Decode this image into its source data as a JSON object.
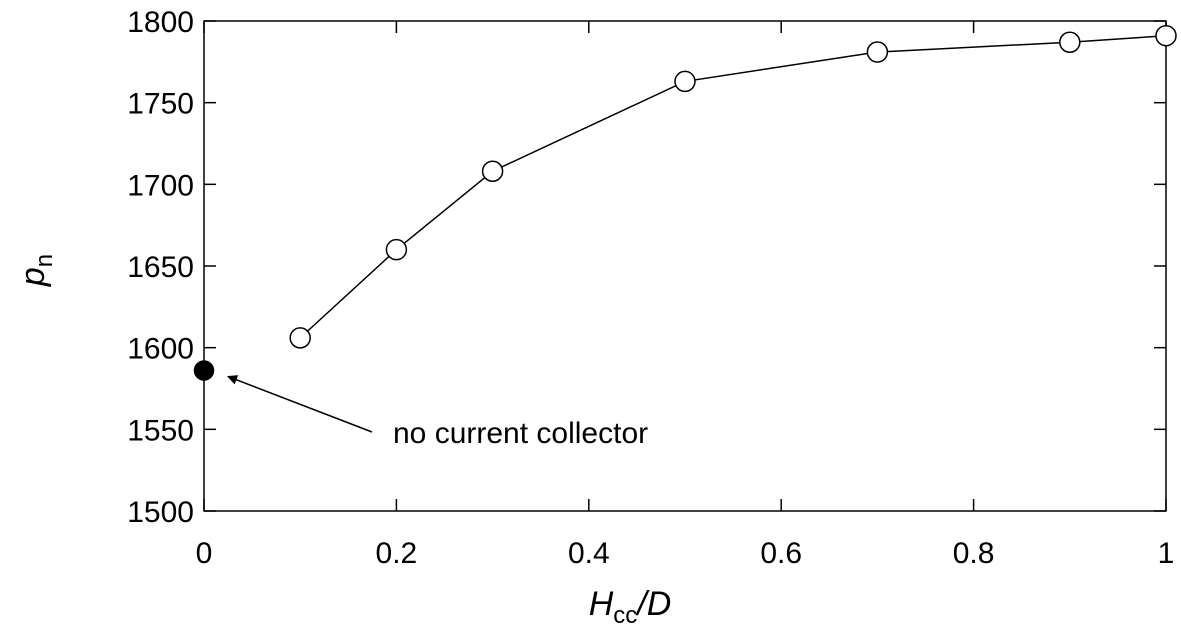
{
  "chart_data": {
    "type": "scatter",
    "xlabel": "H",
    "xlabel_sub": "cc",
    "xlabel_suffix": "/D",
    "ylabel": "p",
    "ylabel_sub": "n",
    "xlim": [
      0,
      1
    ],
    "ylim": [
      1500,
      1800
    ],
    "x_ticks": [
      0,
      0.2,
      0.4,
      0.6,
      0.8,
      1
    ],
    "x_tick_labels": [
      "0",
      "0.2",
      "0.4",
      "0.6",
      "0.8",
      "1"
    ],
    "y_ticks": [
      1500,
      1550,
      1600,
      1650,
      1700,
      1750,
      1800
    ],
    "y_tick_labels": [
      "1500",
      "1550",
      "1600",
      "1650",
      "1700",
      "1750",
      "1800"
    ],
    "grid": false,
    "series": [
      {
        "marker": "open-circle",
        "line": true,
        "color": "#000000",
        "x": [
          0.1,
          0.2,
          0.3,
          0.5,
          0.7,
          0.9,
          1.0
        ],
        "y": [
          1606,
          1660,
          1708,
          1763,
          1781,
          1787,
          1791
        ]
      },
      {
        "marker": "filled-circle",
        "line": false,
        "color": "#000000",
        "x": [
          0
        ],
        "y": [
          1586
        ]
      }
    ],
    "annotations": [
      {
        "text": "no current collector",
        "arrow_to": [
          0,
          1586
        ]
      }
    ]
  }
}
